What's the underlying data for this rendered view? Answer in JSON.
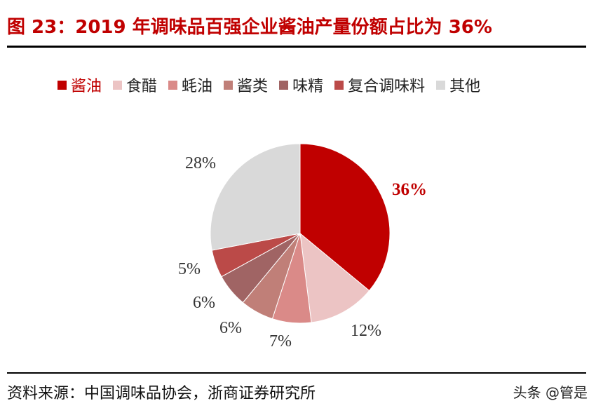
{
  "title": "图 23：2019 年调味品百强企业酱油产量份额占比为 36%",
  "source": "资料来源：中国调味品协会，浙商证券研究所",
  "watermark": "头条 @管是",
  "legend": [
    {
      "label": "酱油",
      "color": "#c00000"
    },
    {
      "label": "食醋",
      "color": "#ecc4c4"
    },
    {
      "label": "蚝油",
      "color": "#da8a88"
    },
    {
      "label": "酱类",
      "color": "#c07f78"
    },
    {
      "label": "味精",
      "color": "#a06464"
    },
    {
      "label": "复合调味料",
      "color": "#bb4a48"
    },
    {
      "label": "其他",
      "color": "#d9d9d9"
    }
  ],
  "labels": {
    "s0": "36%",
    "s1": "12%",
    "s2": "7%",
    "s3": "6%",
    "s4": "6%",
    "s5": "5%",
    "s6": "28%"
  },
  "chart_data": {
    "type": "pie",
    "title": "图 23：2019 年调味品百强企业酱油产量份额占比为 36%",
    "categories": [
      "酱油",
      "食醋",
      "蚝油",
      "酱类",
      "味精",
      "复合调味料",
      "其他"
    ],
    "values": [
      36,
      12,
      7,
      6,
      6,
      5,
      28
    ],
    "unit": "%",
    "colors": [
      "#c00000",
      "#ecc4c4",
      "#da8a88",
      "#c07f78",
      "#a06464",
      "#bb4a48",
      "#d9d9d9"
    ],
    "start_angle": "12 o'clock",
    "direction": "clockwise",
    "legend_position": "top"
  }
}
